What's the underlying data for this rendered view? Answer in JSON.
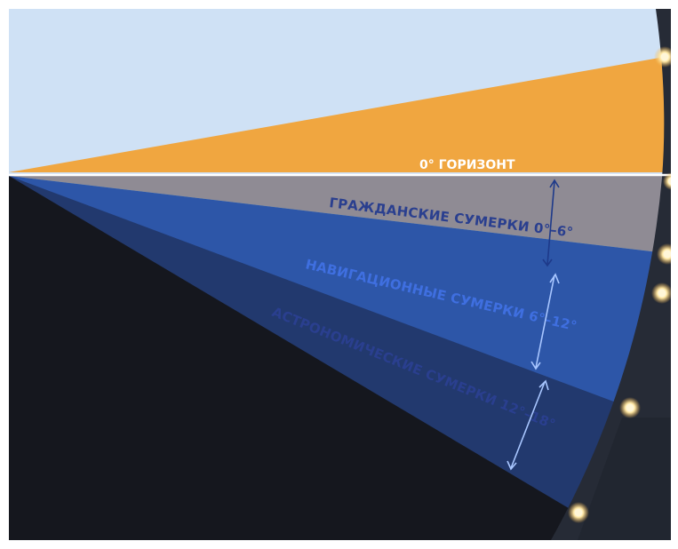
{
  "horizon": {
    "label": "0° ГОРИЗОНТ"
  },
  "bands": [
    {
      "id": "civil",
      "label": "ГРАЖДАНСКИЕ СУМЕРКИ 0°–6°"
    },
    {
      "id": "nautical",
      "label": "НАВИГАЦИОННЫЕ СУМЕРКИ 6°–12°"
    },
    {
      "id": "astronomical",
      "label": "АСТРОНОМИЧЕСКИЕ СУМЕРКИ 12°–18°"
    }
  ],
  "colors": {
    "sky": "#cfe1f5",
    "sun_wedge": "#f0a640",
    "civil": "#8f8b94",
    "civil_edge": "#2f8fe8",
    "nautical": "#2d56a8",
    "astronomical": "#22396e",
    "night": "#15171e",
    "earth_rim": "#262b36",
    "horizon_line": "#ffffff",
    "marker": "#fff2c8"
  }
}
